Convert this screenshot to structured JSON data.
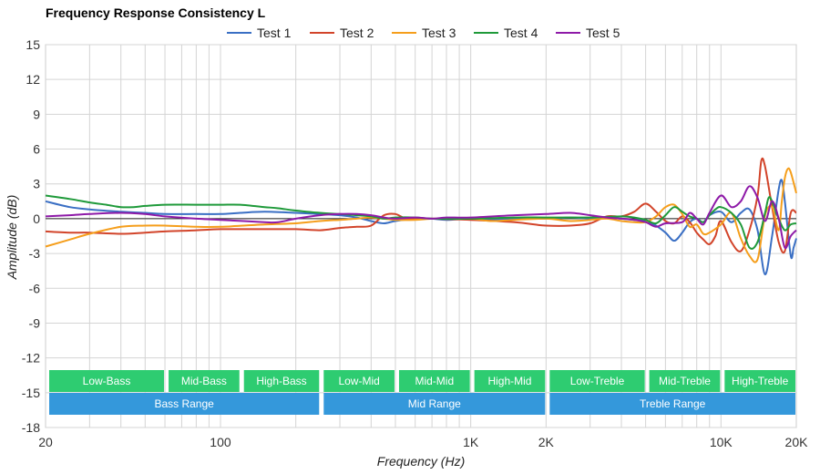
{
  "chart_data": {
    "type": "line",
    "title": "Frequency Response Consistency L",
    "xlabel": "Frequency (Hz)",
    "ylabel": "Amplitude (dB)",
    "xscale": "log",
    "xlim": [
      20,
      20000
    ],
    "ylim": [
      -18,
      15
    ],
    "grid": true,
    "legend_position": "top-center",
    "x_ticks": [
      {
        "value": 20,
        "label": "20"
      },
      {
        "value": 100,
        "label": "100"
      },
      {
        "value": 1000,
        "label": "1K"
      },
      {
        "value": 2000,
        "label": "2K"
      },
      {
        "value": 10000,
        "label": "10K"
      },
      {
        "value": 20000,
        "label": "20K"
      }
    ],
    "y_ticks": [
      {
        "value": 15,
        "label": "15"
      },
      {
        "value": 12,
        "label": "12"
      },
      {
        "value": 9,
        "label": "9"
      },
      {
        "value": 6,
        "label": "6"
      },
      {
        "value": 3,
        "label": "3"
      },
      {
        "value": 0,
        "label": "0"
      },
      {
        "value": -3,
        "label": "-3"
      },
      {
        "value": -6,
        "label": "-6"
      },
      {
        "value": -9,
        "label": "-9"
      },
      {
        "value": -12,
        "label": "-12"
      },
      {
        "value": -15,
        "label": "-15"
      },
      {
        "value": -18,
        "label": "-18"
      }
    ],
    "series": [
      {
        "name": "Test 1",
        "color": "#3a6fc4",
        "points": [
          [
            20,
            1.5
          ],
          [
            25,
            1.0
          ],
          [
            30,
            0.8
          ],
          [
            40,
            0.6
          ],
          [
            50,
            0.5
          ],
          [
            60,
            0.4
          ],
          [
            80,
            0.4
          ],
          [
            100,
            0.4
          ],
          [
            120,
            0.5
          ],
          [
            150,
            0.6
          ],
          [
            200,
            0.5
          ],
          [
            250,
            0.4
          ],
          [
            300,
            0.3
          ],
          [
            350,
            0.1
          ],
          [
            400,
            -0.2
          ],
          [
            450,
            -0.4
          ],
          [
            500,
            -0.2
          ],
          [
            600,
            0.0
          ],
          [
            700,
            0.0
          ],
          [
            800,
            -0.1
          ],
          [
            1000,
            0.0
          ],
          [
            1200,
            -0.1
          ],
          [
            1500,
            0.0
          ],
          [
            2000,
            0.0
          ],
          [
            2500,
            0.1
          ],
          [
            3000,
            0.0
          ],
          [
            3500,
            0.1
          ],
          [
            4000,
            0.0
          ],
          [
            4500,
            -0.1
          ],
          [
            5000,
            -0.2
          ],
          [
            5500,
            -0.6
          ],
          [
            6000,
            -1.2
          ],
          [
            6500,
            -1.9
          ],
          [
            7000,
            -1.2
          ],
          [
            7500,
            -0.3
          ],
          [
            8000,
            0.0
          ],
          [
            8500,
            -0.3
          ],
          [
            9000,
            0.3
          ],
          [
            10000,
            0.6
          ],
          [
            11000,
            -0.3
          ],
          [
            12000,
            0.5
          ],
          [
            13000,
            0.8
          ],
          [
            14000,
            -1.0
          ],
          [
            15000,
            -4.8
          ],
          [
            16000,
            -1.5
          ],
          [
            17000,
            2.5
          ],
          [
            17500,
            3.3
          ],
          [
            18000,
            1.5
          ],
          [
            19000,
            -3.2
          ],
          [
            19500,
            -2.5
          ],
          [
            20000,
            -1.7
          ]
        ]
      },
      {
        "name": "Test 2",
        "color": "#d2442a",
        "points": [
          [
            20,
            -1.1
          ],
          [
            25,
            -1.2
          ],
          [
            30,
            -1.2
          ],
          [
            40,
            -1.3
          ],
          [
            50,
            -1.2
          ],
          [
            60,
            -1.1
          ],
          [
            80,
            -1.0
          ],
          [
            100,
            -0.9
          ],
          [
            150,
            -0.9
          ],
          [
            200,
            -0.9
          ],
          [
            250,
            -1.0
          ],
          [
            300,
            -0.8
          ],
          [
            350,
            -0.7
          ],
          [
            400,
            -0.6
          ],
          [
            450,
            0.3
          ],
          [
            500,
            0.4
          ],
          [
            550,
            0.0
          ],
          [
            600,
            0.0
          ],
          [
            700,
            0.0
          ],
          [
            1000,
            -0.1
          ],
          [
            1500,
            -0.3
          ],
          [
            1800,
            -0.5
          ],
          [
            2000,
            -0.6
          ],
          [
            2500,
            -0.6
          ],
          [
            3000,
            -0.4
          ],
          [
            3500,
            0.2
          ],
          [
            4000,
            0.2
          ],
          [
            4500,
            0.6
          ],
          [
            5000,
            1.3
          ],
          [
            5500,
            0.6
          ],
          [
            6000,
            -0.2
          ],
          [
            6500,
            -0.4
          ],
          [
            7000,
            0.2
          ],
          [
            7500,
            -0.3
          ],
          [
            8000,
            -1.2
          ],
          [
            8500,
            -1.8
          ],
          [
            9000,
            -2.2
          ],
          [
            9500,
            -1.5
          ],
          [
            10000,
            -0.2
          ],
          [
            11000,
            -2.0
          ],
          [
            12000,
            -2.8
          ],
          [
            13000,
            -1.0
          ],
          [
            14000,
            2.0
          ],
          [
            14500,
            5.0
          ],
          [
            15000,
            4.5
          ],
          [
            16000,
            1.0
          ],
          [
            17000,
            -2.0
          ],
          [
            18000,
            -2.8
          ],
          [
            19000,
            0.5
          ],
          [
            20000,
            0.5
          ]
        ]
      },
      {
        "name": "Test 3",
        "color": "#f59e1b",
        "points": [
          [
            20,
            -2.4
          ],
          [
            25,
            -1.8
          ],
          [
            30,
            -1.3
          ],
          [
            40,
            -0.7
          ],
          [
            50,
            -0.6
          ],
          [
            60,
            -0.6
          ],
          [
            80,
            -0.7
          ],
          [
            100,
            -0.7
          ],
          [
            150,
            -0.5
          ],
          [
            200,
            -0.4
          ],
          [
            250,
            -0.2
          ],
          [
            300,
            -0.1
          ],
          [
            350,
            0.0
          ],
          [
            400,
            0.1
          ],
          [
            450,
            0.0
          ],
          [
            500,
            -0.1
          ],
          [
            600,
            -0.1
          ],
          [
            700,
            0.0
          ],
          [
            800,
            0.0
          ],
          [
            1000,
            0.0
          ],
          [
            1200,
            -0.2
          ],
          [
            1500,
            -0.1
          ],
          [
            2000,
            0.0
          ],
          [
            2500,
            -0.2
          ],
          [
            3000,
            -0.1
          ],
          [
            3500,
            0.0
          ],
          [
            4000,
            -0.2
          ],
          [
            4500,
            -0.3
          ],
          [
            5000,
            -0.3
          ],
          [
            5500,
            0.2
          ],
          [
            6000,
            1.0
          ],
          [
            6500,
            1.2
          ],
          [
            7000,
            0.4
          ],
          [
            7500,
            -0.7
          ],
          [
            8000,
            -0.5
          ],
          [
            8500,
            -1.3
          ],
          [
            9000,
            -1.2
          ],
          [
            10000,
            -0.5
          ],
          [
            11000,
            0.5
          ],
          [
            12000,
            -1.7
          ],
          [
            13000,
            -3.2
          ],
          [
            14000,
            -3.5
          ],
          [
            15000,
            0.3
          ],
          [
            16000,
            1.0
          ],
          [
            17000,
            -1.0
          ],
          [
            17500,
            1.5
          ],
          [
            18000,
            3.5
          ],
          [
            18500,
            4.3
          ],
          [
            19000,
            4.0
          ],
          [
            20000,
            2.2
          ]
        ]
      },
      {
        "name": "Test 4",
        "color": "#1f9a3a",
        "points": [
          [
            20,
            2.0
          ],
          [
            25,
            1.7
          ],
          [
            30,
            1.4
          ],
          [
            35,
            1.2
          ],
          [
            40,
            1.0
          ],
          [
            45,
            1.0
          ],
          [
            50,
            1.1
          ],
          [
            60,
            1.2
          ],
          [
            80,
            1.2
          ],
          [
            100,
            1.2
          ],
          [
            120,
            1.2
          ],
          [
            150,
            1.0
          ],
          [
            170,
            0.9
          ],
          [
            200,
            0.7
          ],
          [
            250,
            0.5
          ],
          [
            300,
            0.4
          ],
          [
            350,
            0.3
          ],
          [
            400,
            0.2
          ],
          [
            450,
            0.0
          ],
          [
            500,
            0.1
          ],
          [
            600,
            0.1
          ],
          [
            700,
            0.0
          ],
          [
            1000,
            0.0
          ],
          [
            1500,
            0.1
          ],
          [
            2000,
            0.1
          ],
          [
            3000,
            0.1
          ],
          [
            4000,
            0.2
          ],
          [
            4500,
            0.1
          ],
          [
            5000,
            -0.1
          ],
          [
            5500,
            -0.4
          ],
          [
            6000,
            0.3
          ],
          [
            6500,
            1.0
          ],
          [
            7000,
            0.6
          ],
          [
            7500,
            0.2
          ],
          [
            8000,
            0.0
          ],
          [
            8500,
            -0.3
          ],
          [
            9000,
            0.3
          ],
          [
            9500,
            0.8
          ],
          [
            10000,
            1.0
          ],
          [
            11000,
            0.5
          ],
          [
            12000,
            -0.5
          ],
          [
            13000,
            -2.5
          ],
          [
            14000,
            -2.0
          ],
          [
            15000,
            0.5
          ],
          [
            15500,
            1.8
          ],
          [
            16000,
            1.5
          ],
          [
            17000,
            0.0
          ],
          [
            18000,
            -1.0
          ],
          [
            19000,
            -0.5
          ],
          [
            20000,
            -0.4
          ]
        ]
      },
      {
        "name": "Test 5",
        "color": "#8e1aa8",
        "points": [
          [
            20,
            0.2
          ],
          [
            25,
            0.3
          ],
          [
            30,
            0.4
          ],
          [
            40,
            0.5
          ],
          [
            50,
            0.4
          ],
          [
            60,
            0.2
          ],
          [
            80,
            0.0
          ],
          [
            100,
            -0.1
          ],
          [
            150,
            -0.3
          ],
          [
            170,
            -0.3
          ],
          [
            200,
            0.0
          ],
          [
            250,
            0.3
          ],
          [
            300,
            0.4
          ],
          [
            350,
            0.4
          ],
          [
            400,
            0.3
          ],
          [
            450,
            0.1
          ],
          [
            500,
            0.0
          ],
          [
            600,
            0.1
          ],
          [
            700,
            0.0
          ],
          [
            800,
            0.1
          ],
          [
            1000,
            0.1
          ],
          [
            1500,
            0.3
          ],
          [
            2000,
            0.4
          ],
          [
            2500,
            0.5
          ],
          [
            3000,
            0.3
          ],
          [
            3500,
            0.1
          ],
          [
            4000,
            0.0
          ],
          [
            4500,
            -0.1
          ],
          [
            5000,
            -0.3
          ],
          [
            5500,
            -0.7
          ],
          [
            6000,
            -0.4
          ],
          [
            7000,
            -0.3
          ],
          [
            7500,
            0.5
          ],
          [
            8000,
            0.0
          ],
          [
            8500,
            -0.5
          ],
          [
            9000,
            0.5
          ],
          [
            10000,
            2.0
          ],
          [
            11000,
            1.0
          ],
          [
            12000,
            1.5
          ],
          [
            13000,
            2.8
          ],
          [
            14000,
            1.8
          ],
          [
            15000,
            -0.2
          ],
          [
            16000,
            1.5
          ],
          [
            17000,
            0.0
          ],
          [
            18000,
            -2.5
          ],
          [
            19000,
            -1.5
          ],
          [
            20000,
            -1.0
          ]
        ]
      }
    ],
    "bands": [
      {
        "label": "Low-Bass",
        "range": [
          20,
          60
        ],
        "row": 1,
        "color": "#2ecc71"
      },
      {
        "label": "Mid-Bass",
        "range": [
          60,
          120
        ],
        "row": 1,
        "color": "#2ecc71"
      },
      {
        "label": "High-Bass",
        "range": [
          120,
          250
        ],
        "row": 1,
        "color": "#2ecc71"
      },
      {
        "label": "Low-Mid",
        "range": [
          250,
          500
        ],
        "row": 1,
        "color": "#2ecc71"
      },
      {
        "label": "Mid-Mid",
        "range": [
          500,
          1000
        ],
        "row": 1,
        "color": "#2ecc71"
      },
      {
        "label": "High-Mid",
        "range": [
          1000,
          2000
        ],
        "row": 1,
        "color": "#2ecc71"
      },
      {
        "label": "Low-Treble",
        "range": [
          2000,
          5000
        ],
        "row": 1,
        "color": "#2ecc71"
      },
      {
        "label": "Mid-Treble",
        "range": [
          5000,
          10000
        ],
        "row": 1,
        "color": "#2ecc71"
      },
      {
        "label": "High-Treble",
        "range": [
          10000,
          20000
        ],
        "row": 1,
        "color": "#2ecc71"
      },
      {
        "label": "Bass Range",
        "range": [
          20,
          250
        ],
        "row": 2,
        "color": "#3498db"
      },
      {
        "label": "Mid Range",
        "range": [
          250,
          2000
        ],
        "row": 2,
        "color": "#3498db"
      },
      {
        "label": "Treble Range",
        "range": [
          2000,
          20000
        ],
        "row": 2,
        "color": "#3498db"
      }
    ]
  }
}
